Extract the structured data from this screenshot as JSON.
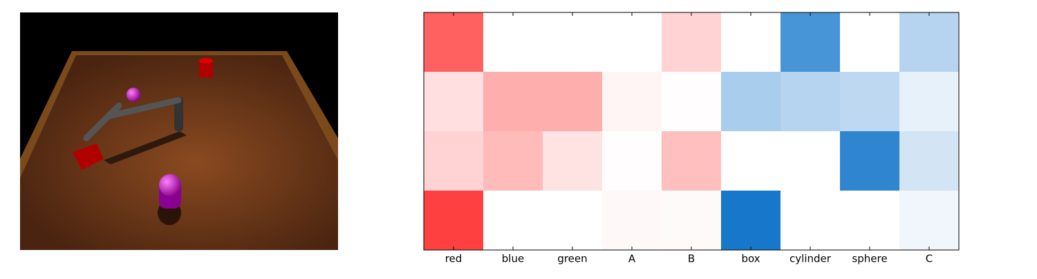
{
  "chart_data": {
    "type": "heatmap",
    "categories": [
      "red",
      "blue",
      "green",
      "A",
      "B",
      "box",
      "cylinder",
      "sphere",
      "C"
    ],
    "values": [
      [
        0.65,
        0,
        0,
        0,
        0.18,
        0,
        -0.75,
        0,
        -0.3
      ],
      [
        0.13,
        0.33,
        0.33,
        0.04,
        0.01,
        -0.35,
        -0.3,
        -0.27,
        -0.1
      ],
      [
        0.18,
        0.28,
        0.12,
        0.01,
        0.26,
        0,
        0,
        -0.85,
        -0.18
      ],
      [
        0.78,
        0,
        0,
        0.03,
        0.02,
        -0.95,
        0,
        0,
        -0.06
      ]
    ],
    "clim": [
      -1,
      1
    ],
    "colors": [
      "#0a70c8",
      "#ffffff",
      "#ff0a0a"
    ]
  }
}
